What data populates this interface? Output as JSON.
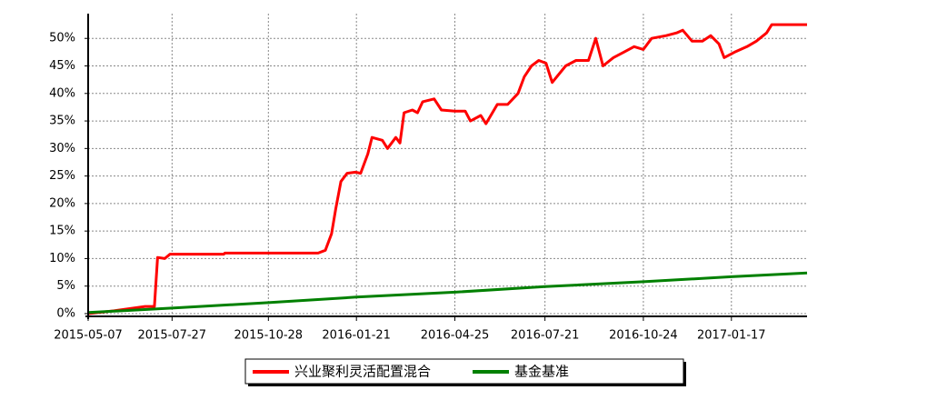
{
  "chart_data": {
    "type": "line",
    "xlim": [
      "2015-05-07",
      "2017-03-31"
    ],
    "xticks": [
      "2015-05-07",
      "2015-07-27",
      "2015-10-28",
      "2016-01-21",
      "2016-04-25",
      "2016-07-21",
      "2016-10-24",
      "2017-01-17"
    ],
    "ylim": [
      -0.5,
      54.5
    ],
    "yticks": [
      {
        "value": 0,
        "label": "0%"
      },
      {
        "value": 5,
        "label": "5%"
      },
      {
        "value": 10,
        "label": "10%"
      },
      {
        "value": 15,
        "label": "15%"
      },
      {
        "value": 20,
        "label": "20%"
      },
      {
        "value": 25,
        "label": "25%"
      },
      {
        "value": 30,
        "label": "30%"
      },
      {
        "value": 35,
        "label": "35%"
      },
      {
        "value": 40,
        "label": "40%"
      },
      {
        "value": 45,
        "label": "45%"
      },
      {
        "value": 50,
        "label": "50%"
      }
    ],
    "grid": true,
    "legend": "bottom",
    "series": [
      {
        "name": "兴业聚利灵活配置混合",
        "color": "#ff0000",
        "x": [
          "2015-05-07",
          "2015-06-01",
          "2015-06-20",
          "2015-07-01",
          "2015-07-10",
          "2015-07-13",
          "2015-07-20",
          "2015-07-25",
          "2015-09-15",
          "2015-09-16",
          "2015-12-15",
          "2015-12-22",
          "2015-12-28",
          "2016-01-01",
          "2016-01-06",
          "2016-01-12",
          "2016-01-20",
          "2016-01-25",
          "2016-02-01",
          "2016-02-05",
          "2016-02-15",
          "2016-02-20",
          "2016-02-28",
          "2016-03-03",
          "2016-03-07",
          "2016-03-15",
          "2016-03-20",
          "2016-03-25",
          "2016-04-05",
          "2016-04-12",
          "2016-04-25",
          "2016-05-05",
          "2016-05-10",
          "2016-05-20",
          "2016-05-25",
          "2016-06-05",
          "2016-06-15",
          "2016-06-25",
          "2016-07-01",
          "2016-07-08",
          "2016-07-15",
          "2016-07-22",
          "2016-07-28",
          "2016-08-10",
          "2016-08-20",
          "2016-09-01",
          "2016-09-08",
          "2016-09-15",
          "2016-09-25",
          "2016-10-05",
          "2016-10-15",
          "2016-10-24",
          "2016-11-01",
          "2016-11-15",
          "2016-11-25",
          "2016-12-01",
          "2016-12-10",
          "2016-12-20",
          "2016-12-28",
          "2017-01-05",
          "2017-01-10",
          "2017-01-20",
          "2017-02-01",
          "2017-02-10",
          "2017-02-20",
          "2017-02-25",
          "2017-03-10",
          "2017-03-31"
        ],
        "values": [
          0,
          0.5,
          1.0,
          1.3,
          1.3,
          10.2,
          10.0,
          10.8,
          10.8,
          11.0,
          11.0,
          11.5,
          14.5,
          19,
          24,
          25.5,
          25.7,
          25.5,
          29,
          32,
          31.5,
          30,
          32,
          31,
          36.5,
          37,
          36.5,
          38.5,
          39,
          37,
          36.8,
          36.8,
          35,
          36,
          34.5,
          38,
          38,
          40,
          43,
          45,
          46,
          45.5,
          42,
          45,
          46,
          46,
          50,
          45,
          46.5,
          47.5,
          48.5,
          48,
          50,
          50.5,
          51,
          51.5,
          49.5,
          49.5,
          50.5,
          49,
          46.5,
          47.5,
          48.5,
          49.5,
          51,
          52.5,
          52.5,
          52.5
        ]
      },
      {
        "name": "基金基准",
        "color": "#008000",
        "x": [
          "2015-05-07",
          "2015-07-27",
          "2015-10-28",
          "2016-01-21",
          "2016-04-25",
          "2016-07-21",
          "2016-10-24",
          "2017-01-17",
          "2017-03-31"
        ],
        "values": [
          0.2,
          1.0,
          2.0,
          3.0,
          3.9,
          4.9,
          5.8,
          6.7,
          7.4
        ]
      }
    ]
  }
}
